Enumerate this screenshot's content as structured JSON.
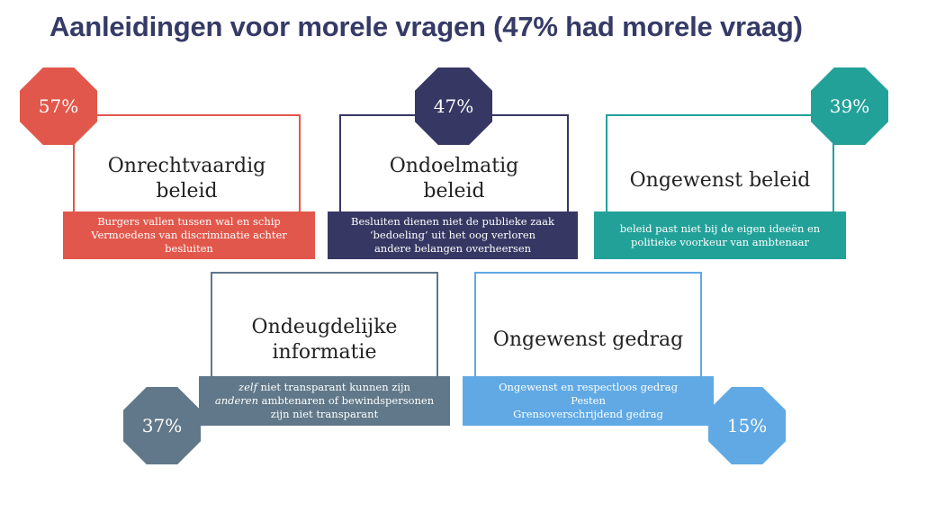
{
  "title": "Aanleidingen voor morele vragen (47% had morele vraag)",
  "colors": {
    "title": "#353a67",
    "red": "#e2574b",
    "navy": "#363763",
    "teal": "#22a199",
    "slate": "#607889",
    "blue": "#60a9e4"
  },
  "items": [
    {
      "percent": "57%",
      "title_lines": [
        "Onrechtvaardig",
        "beleid"
      ],
      "desc_lines": [
        "Burgers vallen tussen wal en schip",
        "Vermoedens van discriminatie achter",
        "besluiten"
      ]
    },
    {
      "percent": "47%",
      "title_lines": [
        "Ondoelmatig",
        "beleid"
      ],
      "desc_lines": [
        "Besluiten dienen niet de publieke zaak",
        "‘bedoeling’ uit het oog verloren",
        "andere belangen overheersen"
      ]
    },
    {
      "percent": "39%",
      "title_lines": [
        "Ongewenst beleid"
      ],
      "desc_lines": [
        "beleid past niet bij de eigen ideeën en",
        "politieke voorkeur van ambtenaar"
      ]
    },
    {
      "percent": "37%",
      "title_lines": [
        "Ondeugdelijke",
        "informatie"
      ],
      "desc_lines": [
        {
          "em": "zelf",
          "rest": " niet transparant kunnen zijn"
        },
        {
          "em": "anderen",
          "rest": " ambtenaren of bewindspersonen"
        },
        {
          "em": "",
          "rest": "zijn niet transparant"
        }
      ]
    },
    {
      "percent": "15%",
      "title_lines": [
        "Ongewenst gedrag"
      ],
      "desc_lines": [
        "Ongewenst en respectloos gedrag",
        "Pesten",
        "Grensoverschrijdend gedrag"
      ]
    }
  ]
}
